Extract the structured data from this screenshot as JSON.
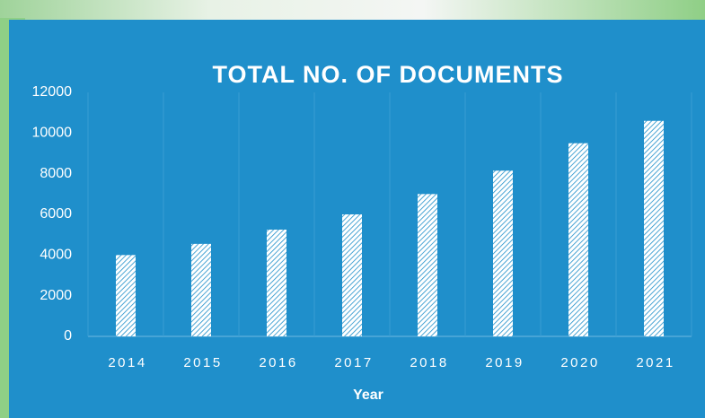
{
  "chart_data": {
    "type": "bar",
    "title": "TOTAL NO. OF DOCUMENTS",
    "x_label": "Year",
    "categories": [
      "2014",
      "2015",
      "2016",
      "2017",
      "2018",
      "2019",
      "2020",
      "2021"
    ],
    "values": [
      4000,
      4550,
      5250,
      6000,
      7000,
      8150,
      9500,
      10600
    ],
    "color": "#ffffff",
    "ylim": [
      0,
      12000
    ],
    "yticks": [
      0,
      2000,
      4000,
      6000,
      8000,
      10000,
      12000
    ],
    "grid": true
  }
}
